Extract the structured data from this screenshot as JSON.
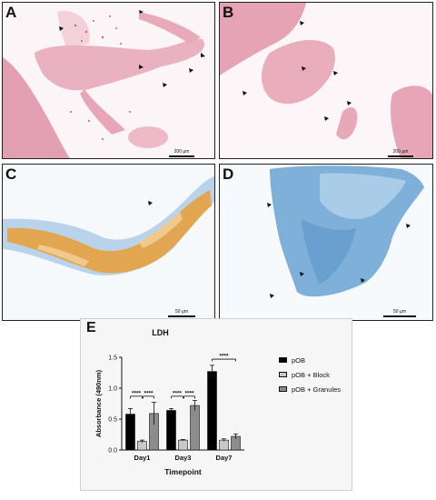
{
  "panels": {
    "A": {
      "label": "A",
      "scale": "200 µm"
    },
    "B": {
      "label": "B",
      "scale": "200 µm"
    },
    "C": {
      "label": "C",
      "scale": "50 µm"
    },
    "D": {
      "label": "D",
      "scale": "50 µm"
    },
    "E": {
      "label": "E"
    }
  },
  "colors": {
    "pink_stain": "#e8a7b6",
    "blue_stain": "#7fb0da",
    "orange_stain": "#e3a650",
    "bar_pOB": "#000000",
    "bar_block": "#c8c8c8",
    "bar_granules": "#8c8c8c"
  },
  "chart_data": {
    "type": "bar",
    "title": "LDH",
    "xlabel": "Timepoint",
    "ylabel": "Absorbance (490nm)",
    "ylim": [
      0,
      1.5
    ],
    "yticks": [
      "0.0",
      "0.5",
      "1.0",
      "1.5"
    ],
    "categories": [
      "Day1",
      "Day3",
      "Day7"
    ],
    "series": [
      {
        "name": "pOB",
        "color": "#000000",
        "values": [
          0.58,
          0.64,
          1.27
        ],
        "errors": [
          0.09,
          0.03,
          0.1
        ]
      },
      {
        "name": "pOB + Block",
        "color": "#c8c8c8",
        "values": [
          0.14,
          0.16,
          0.16
        ],
        "errors": [
          0.02,
          0.01,
          0.02
        ]
      },
      {
        "name": "pOB + Granules",
        "color": "#8c8c8c",
        "values": [
          0.59,
          0.72,
          0.22
        ],
        "errors": [
          0.18,
          0.08,
          0.04
        ]
      }
    ],
    "significance": [
      {
        "group": "Day1",
        "from": 0,
        "to": 1,
        "label": "****"
      },
      {
        "group": "Day1",
        "from": 1,
        "to": 2,
        "label": "****"
      },
      {
        "group": "Day3",
        "from": 0,
        "to": 1,
        "label": "****"
      },
      {
        "group": "Day3",
        "from": 1,
        "to": 2,
        "label": "****"
      },
      {
        "group": "Day7",
        "from": 0,
        "to": 2,
        "label": "****"
      }
    ],
    "legend_position": "right"
  }
}
